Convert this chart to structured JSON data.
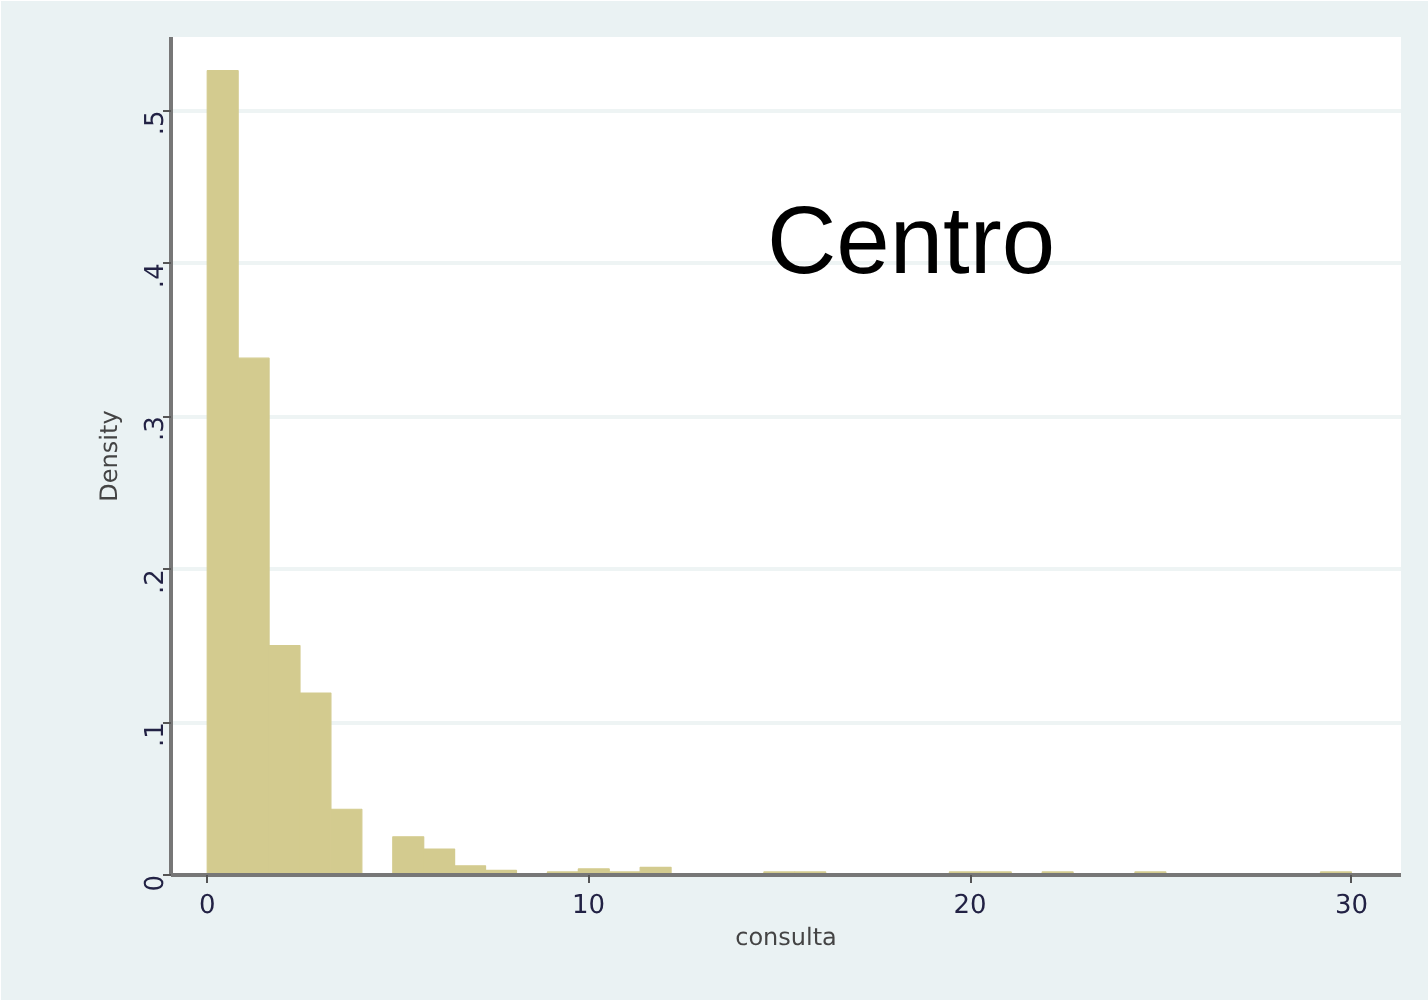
{
  "chart_data": {
    "type": "histogram",
    "xlabel": "consulta",
    "ylabel": "Density",
    "annotations": [
      "Centro"
    ],
    "bins": [
      0,
      0.811,
      1.622,
      2.432,
      3.243,
      4.054,
      4.865,
      5.676,
      6.486,
      7.297,
      8.108,
      8.919,
      9.73,
      10.541,
      11.351,
      12.162,
      12.973,
      13.784,
      14.595,
      15.405,
      16.216,
      17.027,
      17.838,
      18.649,
      19.459,
      20.27,
      21.081,
      21.892,
      22.703,
      23.514,
      24.324,
      25.135,
      25.946,
      26.757,
      27.568,
      28.378,
      29.189,
      30
    ],
    "values": [
      0.526,
      0.338,
      0.15,
      0.119,
      0.043,
      0,
      0.025,
      0.017,
      0.006,
      0.003,
      0,
      0.002,
      0.004,
      0.002,
      0.005,
      0,
      0,
      0,
      0.002,
      0.002,
      0,
      0,
      0,
      0,
      0.002,
      0.002,
      0,
      0.002,
      0,
      0,
      0.002,
      0,
      0,
      0,
      0,
      0,
      0.002
    ],
    "color": "#d3cb8f",
    "xlim": [
      -0.95,
      31.3
    ],
    "ylim": [
      0,
      0.548
    ],
    "xticks": [
      0,
      10,
      20,
      30
    ],
    "yticks": [
      0,
      {
        "value": 0.1,
        "label": ".1"
      },
      {
        "value": 0.2,
        "label": ".2"
      },
      {
        "value": 0.3,
        "label": ".3"
      },
      {
        "value": 0.4,
        "label": ".4"
      },
      {
        "value": 0.5,
        "label": ".5"
      }
    ],
    "grid": "y"
  }
}
